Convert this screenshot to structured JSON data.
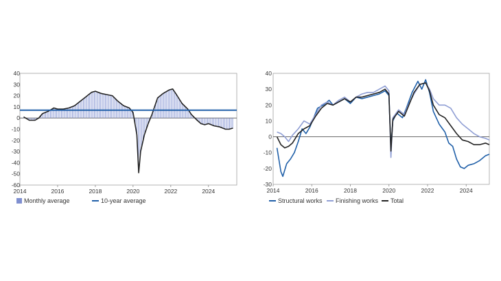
{
  "chart_data": [
    {
      "type": "bar",
      "xlim": [
        2014,
        2025.5
      ],
      "ylim": [
        -60,
        40
      ],
      "x_ticks": [
        "2014",
        "2016",
        "2018",
        "2020",
        "2022",
        "2024"
      ],
      "y_ticks": [
        "40",
        "30",
        "20",
        "10",
        "0",
        "-10",
        "-20",
        "-30",
        "-40",
        "-50",
        "-60"
      ],
      "grid": false,
      "legend": {
        "placement": "bottom",
        "entries": [
          "Monthly average",
          "10-year average"
        ]
      },
      "series": [
        {
          "name": "Monthly average",
          "kind": "bar+line",
          "color": "#7f8fd0",
          "line_color": "#222222",
          "points": [
            [
              2014.2,
              1
            ],
            [
              2014.5,
              -2
            ],
            [
              2014.8,
              -2
            ],
            [
              2015.0,
              0
            ],
            [
              2015.2,
              4
            ],
            [
              2015.5,
              6
            ],
            [
              2015.8,
              9
            ],
            [
              2016.0,
              8
            ],
            [
              2016.3,
              8
            ],
            [
              2016.6,
              9
            ],
            [
              2016.9,
              11
            ],
            [
              2017.2,
              15
            ],
            [
              2017.5,
              19
            ],
            [
              2017.8,
              23
            ],
            [
              2018.0,
              24
            ],
            [
              2018.3,
              22
            ],
            [
              2018.6,
              21
            ],
            [
              2018.9,
              20
            ],
            [
              2019.2,
              15
            ],
            [
              2019.5,
              11
            ],
            [
              2019.8,
              9
            ],
            [
              2020.0,
              5
            ],
            [
              2020.2,
              -15
            ],
            [
              2020.3,
              -49
            ],
            [
              2020.4,
              -30
            ],
            [
              2020.6,
              -15
            ],
            [
              2020.8,
              -5
            ],
            [
              2021.0,
              3
            ],
            [
              2021.3,
              18
            ],
            [
              2021.6,
              22
            ],
            [
              2021.9,
              25
            ],
            [
              2022.1,
              26
            ],
            [
              2022.3,
              21
            ],
            [
              2022.6,
              13
            ],
            [
              2022.9,
              8
            ],
            [
              2023.1,
              3
            ],
            [
              2023.4,
              -2
            ],
            [
              2023.6,
              -5
            ],
            [
              2023.8,
              -6
            ],
            [
              2024.0,
              -5
            ],
            [
              2024.3,
              -7
            ],
            [
              2024.6,
              -8
            ],
            [
              2024.9,
              -10
            ],
            [
              2025.1,
              -10
            ],
            [
              2025.3,
              -9
            ]
          ]
        },
        {
          "name": "10-year average",
          "kind": "hline",
          "color": "#1f5fa8",
          "value": 7
        }
      ]
    },
    {
      "type": "line",
      "xlim": [
        2014,
        2025.2
      ],
      "ylim": [
        -30,
        40
      ],
      "x_ticks": [
        "2014",
        "2016",
        "2018",
        "2020",
        "2022",
        "2024"
      ],
      "y_ticks": [
        "40",
        "30",
        "20",
        "10",
        "0",
        "-10",
        "-20",
        "-30"
      ],
      "grid": false,
      "legend": {
        "placement": "bottom",
        "entries": [
          "Structural works",
          "Finishing works",
          "Total"
        ]
      },
      "series": [
        {
          "name": "Structural works",
          "color": "#1f5fa8",
          "points": [
            [
              2014.2,
              -7
            ],
            [
              2014.4,
              -22
            ],
            [
              2014.5,
              -25
            ],
            [
              2014.7,
              -17
            ],
            [
              2014.9,
              -14
            ],
            [
              2015.1,
              -10
            ],
            [
              2015.3,
              -3
            ],
            [
              2015.5,
              5
            ],
            [
              2015.7,
              2
            ],
            [
              2015.9,
              6
            ],
            [
              2016.1,
              12
            ],
            [
              2016.3,
              18
            ],
            [
              2016.6,
              20
            ],
            [
              2016.9,
              23
            ],
            [
              2017.1,
              20
            ],
            [
              2017.4,
              22
            ],
            [
              2017.7,
              24
            ],
            [
              2018.0,
              21
            ],
            [
              2018.3,
              25
            ],
            [
              2018.6,
              24
            ],
            [
              2018.9,
              25
            ],
            [
              2019.2,
              26
            ],
            [
              2019.5,
              27
            ],
            [
              2019.8,
              29
            ],
            [
              2020.0,
              26
            ],
            [
              2020.1,
              -7
            ],
            [
              2020.2,
              10
            ],
            [
              2020.4,
              15
            ],
            [
              2020.7,
              12
            ],
            [
              2020.9,
              18
            ],
            [
              2021.2,
              28
            ],
            [
              2021.5,
              35
            ],
            [
              2021.7,
              30
            ],
            [
              2021.9,
              36
            ],
            [
              2022.1,
              28
            ],
            [
              2022.3,
              16
            ],
            [
              2022.6,
              8
            ],
            [
              2022.9,
              3
            ],
            [
              2023.1,
              -4
            ],
            [
              2023.3,
              -6
            ],
            [
              2023.5,
              -14
            ],
            [
              2023.7,
              -19
            ],
            [
              2023.9,
              -20
            ],
            [
              2024.1,
              -18
            ],
            [
              2024.4,
              -17
            ],
            [
              2024.7,
              -15
            ],
            [
              2025.0,
              -12
            ],
            [
              2025.2,
              -11
            ]
          ]
        },
        {
          "name": "Finishing works",
          "color": "#8f9ed4",
          "points": [
            [
              2014.2,
              3
            ],
            [
              2014.4,
              2
            ],
            [
              2014.6,
              0
            ],
            [
              2014.8,
              -3
            ],
            [
              2015.0,
              1
            ],
            [
              2015.3,
              5
            ],
            [
              2015.6,
              10
            ],
            [
              2015.9,
              8
            ],
            [
              2016.2,
              14
            ],
            [
              2016.5,
              20
            ],
            [
              2016.8,
              22
            ],
            [
              2017.1,
              20
            ],
            [
              2017.4,
              23
            ],
            [
              2017.7,
              25
            ],
            [
              2018.0,
              22
            ],
            [
              2018.3,
              25
            ],
            [
              2018.6,
              27
            ],
            [
              2018.9,
              28
            ],
            [
              2019.2,
              28
            ],
            [
              2019.5,
              30
            ],
            [
              2019.8,
              32
            ],
            [
              2020.0,
              29
            ],
            [
              2020.1,
              -13
            ],
            [
              2020.2,
              12
            ],
            [
              2020.5,
              17
            ],
            [
              2020.8,
              14
            ],
            [
              2021.0,
              20
            ],
            [
              2021.3,
              27
            ],
            [
              2021.6,
              33
            ],
            [
              2021.9,
              34
            ],
            [
              2022.1,
              30
            ],
            [
              2022.3,
              24
            ],
            [
              2022.6,
              20
            ],
            [
              2022.9,
              20
            ],
            [
              2023.2,
              18
            ],
            [
              2023.5,
              12
            ],
            [
              2023.8,
              8
            ],
            [
              2024.1,
              5
            ],
            [
              2024.4,
              2
            ],
            [
              2024.7,
              0
            ],
            [
              2025.0,
              -1
            ],
            [
              2025.2,
              -2
            ]
          ]
        },
        {
          "name": "Total",
          "color": "#222222",
          "points": [
            [
              2014.2,
              0
            ],
            [
              2014.4,
              -5
            ],
            [
              2014.6,
              -7
            ],
            [
              2014.8,
              -6
            ],
            [
              2015.0,
              -4
            ],
            [
              2015.3,
              2
            ],
            [
              2015.6,
              5
            ],
            [
              2015.9,
              7
            ],
            [
              2016.2,
              13
            ],
            [
              2016.5,
              18
            ],
            [
              2016.8,
              21
            ],
            [
              2017.1,
              20
            ],
            [
              2017.4,
              22
            ],
            [
              2017.7,
              24
            ],
            [
              2018.0,
              22
            ],
            [
              2018.3,
              25
            ],
            [
              2018.6,
              25
            ],
            [
              2018.9,
              26
            ],
            [
              2019.2,
              27
            ],
            [
              2019.5,
              28
            ],
            [
              2019.8,
              30
            ],
            [
              2020.0,
              27
            ],
            [
              2020.1,
              -9
            ],
            [
              2020.2,
              11
            ],
            [
              2020.5,
              16
            ],
            [
              2020.8,
              13
            ],
            [
              2021.0,
              19
            ],
            [
              2021.3,
              28
            ],
            [
              2021.6,
              33
            ],
            [
              2021.9,
              34
            ],
            [
              2022.1,
              29
            ],
            [
              2022.3,
              20
            ],
            [
              2022.6,
              14
            ],
            [
              2022.9,
              12
            ],
            [
              2023.2,
              7
            ],
            [
              2023.5,
              2
            ],
            [
              2023.8,
              -2
            ],
            [
              2024.1,
              -3
            ],
            [
              2024.4,
              -5
            ],
            [
              2024.7,
              -5
            ],
            [
              2025.0,
              -4
            ],
            [
              2025.2,
              -5
            ]
          ]
        }
      ]
    }
  ]
}
